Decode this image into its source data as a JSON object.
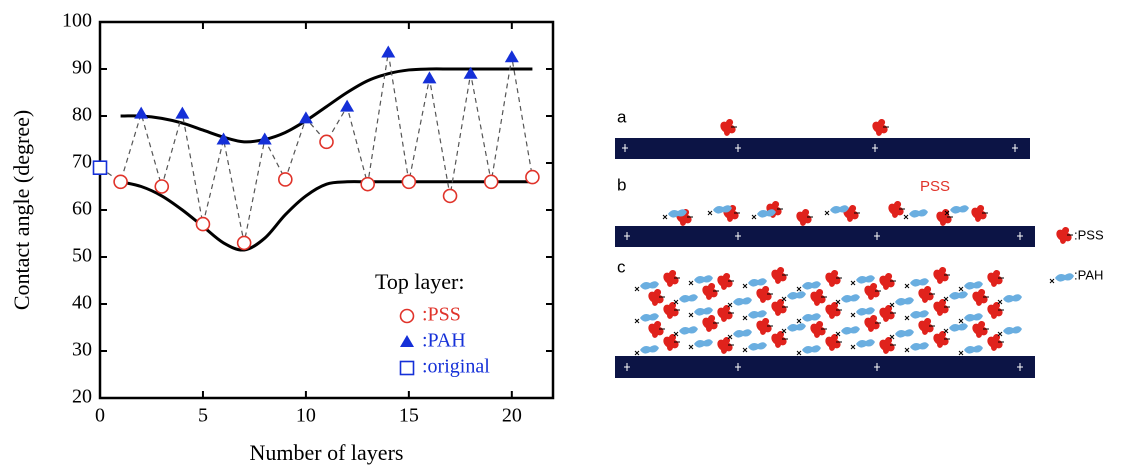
{
  "chart_data": {
    "type": "scatter",
    "x_label": "Number of layers",
    "y_label": "Contact angle (degree)",
    "xlim": [
      0,
      22
    ],
    "ylim": [
      20,
      100
    ],
    "xticks": [
      0,
      5,
      10,
      15,
      20
    ],
    "yticks": [
      20,
      30,
      40,
      50,
      60,
      70,
      80,
      90,
      100
    ],
    "legend_title": "Top layer:",
    "legend_position": "lower right",
    "series": [
      {
        "name": ":PSS",
        "color": "#e0332a",
        "marker": "circle",
        "x": [
          1,
          3,
          5,
          7,
          9,
          11,
          13,
          15,
          17,
          19,
          21
        ],
        "values": [
          66,
          65,
          57,
          53,
          66.5,
          74.5,
          65.5,
          66,
          63,
          66,
          67
        ]
      },
      {
        "name": ":PAH",
        "color": "#1530d8",
        "marker": "triangle",
        "x": [
          2,
          4,
          6,
          8,
          10,
          12,
          14,
          16,
          18,
          20
        ],
        "values": [
          80.5,
          80.5,
          75,
          75,
          79.5,
          82,
          93.5,
          88,
          89,
          92.5
        ]
      },
      {
        "name": ":original",
        "color": "#1530d8",
        "marker": "square",
        "x": [
          0
        ],
        "values": [
          69
        ]
      }
    ],
    "curves": [
      {
        "color": "#000000",
        "x": [
          1,
          2,
          3,
          4,
          5,
          6,
          7,
          8,
          9,
          10,
          11,
          12,
          13,
          14,
          15,
          16,
          17,
          18,
          19,
          20,
          21
        ],
        "values": [
          80,
          80,
          79.5,
          78.5,
          77,
          75.5,
          74.5,
          75,
          76.5,
          79,
          82,
          85,
          87.5,
          89,
          89.8,
          90,
          90,
          90,
          90,
          90,
          90
        ]
      },
      {
        "color": "#000000",
        "x": [
          1,
          2,
          3,
          4,
          5,
          6,
          7,
          8,
          9,
          10,
          11,
          12,
          13,
          14,
          15,
          16,
          17,
          18,
          19,
          20,
          21
        ],
        "values": [
          66,
          65,
          63,
          60,
          56.5,
          53,
          51.5,
          54,
          59,
          63,
          65.5,
          66,
          66,
          66,
          66,
          66,
          66,
          66,
          66,
          66,
          66
        ]
      }
    ]
  },
  "diagram": {
    "panels": [
      "a",
      "b",
      "c"
    ],
    "annotation": "PSS",
    "legend": [
      ":PSS",
      ":PAH"
    ]
  }
}
